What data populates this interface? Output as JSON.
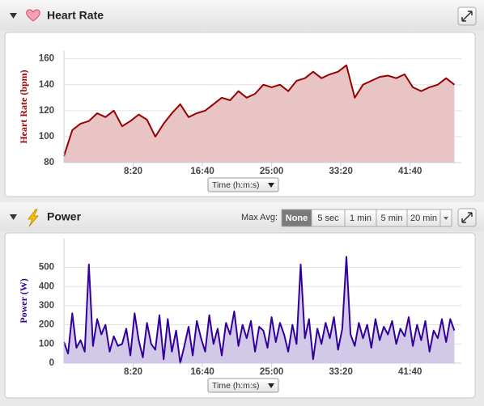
{
  "chart_data": [
    {
      "type": "area",
      "title": "Heart Rate",
      "ylabel": "Heart Rate (bpm)",
      "xaxis_selector": "Time (h:m:s)",
      "color": "#990000",
      "fill": "#e8c4c4",
      "x": [
        0,
        60,
        120,
        180,
        240,
        300,
        360,
        420,
        480,
        540,
        600,
        660,
        720,
        780,
        840,
        900,
        960,
        1020,
        1080,
        1140,
        1200,
        1260,
        1320,
        1380,
        1440,
        1500,
        1560,
        1620,
        1680,
        1740,
        1800,
        1860,
        1920,
        1980,
        2040,
        2100,
        2160,
        2220,
        2280,
        2340,
        2400,
        2460,
        2520,
        2580,
        2640,
        2700,
        2760,
        2820
      ],
      "values": [
        85,
        105,
        110,
        112,
        118,
        115,
        120,
        108,
        112,
        117,
        113,
        100,
        110,
        118,
        125,
        115,
        118,
        120,
        125,
        130,
        128,
        135,
        130,
        133,
        140,
        138,
        140,
        135,
        143,
        145,
        150,
        145,
        148,
        150,
        155,
        130,
        140,
        143,
        146,
        147,
        145,
        148,
        138,
        135,
        138,
        140,
        145,
        140
      ],
      "xlim": [
        0,
        2870
      ],
      "ylim": [
        80,
        166
      ],
      "xticks": [
        {
          "value": 500,
          "label": "8:20"
        },
        {
          "value": 1000,
          "label": "16:40"
        },
        {
          "value": 1500,
          "label": "25:00"
        },
        {
          "value": 2000,
          "label": "33:20"
        },
        {
          "value": 2500,
          "label": "41:40"
        }
      ],
      "yticks": [
        80,
        100,
        120,
        140,
        160
      ],
      "grid": true
    },
    {
      "type": "area",
      "title": "Power",
      "ylabel": "Power (W)",
      "xaxis_selector": "Time (h:m:s)",
      "color": "#330099",
      "fill": "#d2c8e8",
      "x": [
        0,
        30,
        60,
        90,
        120,
        150,
        180,
        210,
        240,
        270,
        300,
        330,
        360,
        390,
        420,
        450,
        480,
        510,
        540,
        570,
        600,
        630,
        660,
        690,
        720,
        750,
        780,
        810,
        840,
        870,
        900,
        930,
        960,
        990,
        1020,
        1050,
        1080,
        1110,
        1140,
        1170,
        1200,
        1230,
        1260,
        1290,
        1320,
        1350,
        1380,
        1410,
        1440,
        1470,
        1500,
        1530,
        1560,
        1590,
        1620,
        1650,
        1680,
        1710,
        1740,
        1770,
        1800,
        1830,
        1860,
        1890,
        1920,
        1950,
        1980,
        2010,
        2040,
        2070,
        2100,
        2130,
        2160,
        2190,
        2220,
        2250,
        2280,
        2310,
        2340,
        2370,
        2400,
        2430,
        2460,
        2490,
        2520,
        2550,
        2580,
        2610,
        2640,
        2670,
        2700,
        2730,
        2760,
        2790,
        2820
      ],
      "values": [
        110,
        50,
        260,
        80,
        120,
        60,
        515,
        90,
        230,
        150,
        200,
        60,
        140,
        90,
        100,
        180,
        40,
        260,
        120,
        30,
        210,
        100,
        70,
        250,
        20,
        230,
        60,
        170,
        0,
        90,
        190,
        40,
        220,
        130,
        60,
        250,
        100,
        180,
        40,
        210,
        150,
        270,
        90,
        200,
        130,
        220,
        60,
        190,
        170,
        80,
        240,
        110,
        210,
        150,
        60,
        200,
        100,
        515,
        130,
        230,
        20,
        180,
        100,
        210,
        130,
        240,
        70,
        180,
        555,
        150,
        90,
        210,
        130,
        200,
        80,
        230,
        120,
        190,
        150,
        220,
        100,
        180,
        140,
        240,
        90,
        200,
        120,
        220,
        60,
        170,
        130,
        230,
        110,
        230,
        170
      ],
      "xlim": [
        0,
        2870
      ],
      "ylim": [
        0,
        650
      ],
      "xticks": [
        {
          "value": 500,
          "label": "8:20"
        },
        {
          "value": 1000,
          "label": "16:40"
        },
        {
          "value": 1500,
          "label": "25:00"
        },
        {
          "value": 2000,
          "label": "33:20"
        },
        {
          "value": 2500,
          "label": "41:40"
        }
      ],
      "yticks": [
        0,
        100,
        200,
        300,
        400,
        500
      ],
      "grid": true
    }
  ],
  "controls": {
    "label": "Max Avg:",
    "options": [
      "None",
      "5 sec",
      "1 min",
      "5 min",
      "20 min"
    ],
    "selected": "None"
  }
}
